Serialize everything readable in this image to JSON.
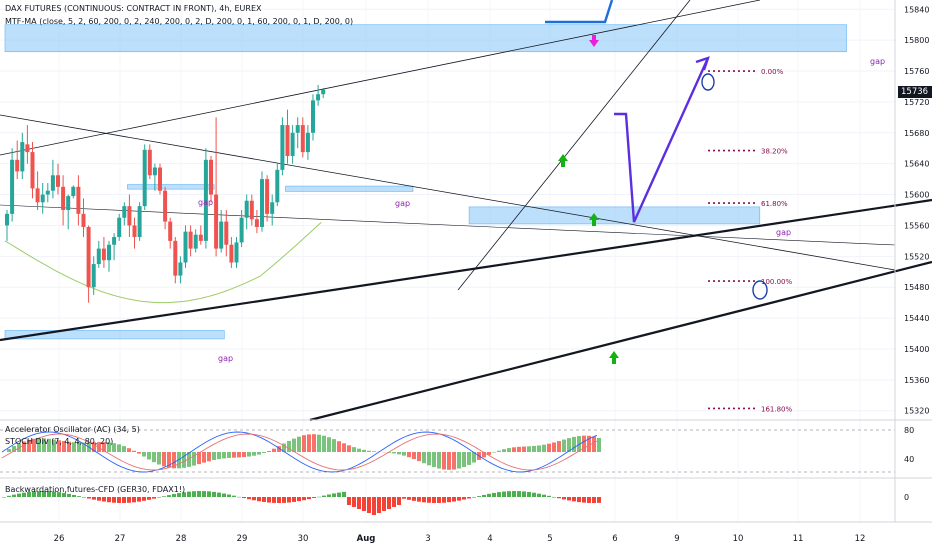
{
  "header": {
    "symbol_line": "DAX FUTURES (CONTINUOUS: CONTRACT IN FRONT), 4h, EUREX",
    "mtf_ma_line": "MTF-MA (close, 5, 2, 60, 200, 0, 2, 240, 200, 0, 2, D, 200, 0, 1, 60, 200, 0, 1, D, 200, 0)",
    "ac_line": "Accelerator Oscillator (AC) (34, 5)",
    "stoch_line": "STOCH Div (7, 4, 4, 80, 20)",
    "backwardation_line": "Backwardation,futures-CFD (GER30, FDAX1!)"
  },
  "last_price": "15736",
  "colors": {
    "bull": "#26a69a",
    "bear": "#ef5350",
    "zone_fill": "#90caf9",
    "projection": "#5b2fe0",
    "fib": "#880e4f",
    "ma_line": "#9ccc65",
    "arrow_up": "#12b312",
    "arrow_down": "#e91ee0",
    "stoch_blue": "#2962ff",
    "stoch_red": "#e57373"
  },
  "annotations": {
    "gap_labels": [
      "gap",
      "gap",
      "gap",
      "gap",
      "gap"
    ],
    "fib_labels": [
      "0.00%",
      "38.20%",
      "61.80%",
      "100.00%",
      "161.80%"
    ]
  },
  "chart_data": {
    "type": "candlestick",
    "x_tick_labels": [
      "26",
      "27",
      "28",
      "29",
      "30",
      "Aug",
      "3",
      "4",
      "5",
      "6",
      "9",
      "10",
      "11",
      "12"
    ],
    "price_axis": {
      "ticks": [
        15840,
        15800,
        15760,
        15720,
        15680,
        15640,
        15600,
        15560,
        15520,
        15480,
        15440,
        15400,
        15360,
        15320
      ],
      "range": [
        15308,
        15852
      ]
    },
    "ac_axis_ticks": [
      80,
      40
    ],
    "backwardation_axis_ticks": [
      0
    ],
    "candles_ohlc": [
      [
        15560,
        15580,
        15540,
        15575
      ],
      [
        15575,
        15660,
        15565,
        15645
      ],
      [
        15645,
        15670,
        15620,
        15630
      ],
      [
        15630,
        15680,
        15620,
        15668
      ],
      [
        15665,
        15690,
        15640,
        15655
      ],
      [
        15655,
        15668,
        15595,
        15608
      ],
      [
        15608,
        15630,
        15580,
        15590
      ],
      [
        15590,
        15615,
        15575,
        15600
      ],
      [
        15600,
        15615,
        15590,
        15605
      ],
      [
        15605,
        15645,
        15595,
        15625
      ],
      [
        15625,
        15640,
        15600,
        15610
      ],
      [
        15610,
        15625,
        15560,
        15580
      ],
      [
        15580,
        15600,
        15555,
        15598
      ],
      [
        15598,
        15612,
        15595,
        15610
      ],
      [
        15610,
        15625,
        15560,
        15575
      ],
      [
        15575,
        15595,
        15545,
        15558
      ],
      [
        15558,
        15560,
        15460,
        15480
      ],
      [
        15480,
        15520,
        15470,
        15510
      ],
      [
        15510,
        15540,
        15505,
        15530
      ],
      [
        15530,
        15545,
        15505,
        15515
      ],
      [
        15515,
        15540,
        15500,
        15535
      ],
      [
        15535,
        15550,
        15515,
        15545
      ],
      [
        15545,
        15575,
        15540,
        15570
      ],
      [
        15570,
        15590,
        15560,
        15585
      ],
      [
        15585,
        15600,
        15545,
        15560
      ],
      [
        15560,
        15570,
        15530,
        15545
      ],
      [
        15545,
        15590,
        15540,
        15585
      ],
      [
        15585,
        15665,
        15580,
        15658
      ],
      [
        15658,
        15665,
        15620,
        15625
      ],
      [
        15625,
        15640,
        15605,
        15635
      ],
      [
        15635,
        15640,
        15600,
        15605
      ],
      [
        15605,
        15610,
        15555,
        15565
      ],
      [
        15565,
        15570,
        15530,
        15540
      ],
      [
        15540,
        15545,
        15485,
        15495
      ],
      [
        15495,
        15520,
        15485,
        15512
      ],
      [
        15512,
        15560,
        15505,
        15552
      ],
      [
        15552,
        15560,
        15520,
        15530
      ],
      [
        15530,
        15555,
        15525,
        15548
      ],
      [
        15548,
        15560,
        15535,
        15540
      ],
      [
        15540,
        15660,
        15530,
        15645
      ],
      [
        15645,
        15650,
        15590,
        15600
      ],
      [
        15600,
        15700,
        15520,
        15530
      ],
      [
        15530,
        15580,
        15525,
        15565
      ],
      [
        15565,
        15580,
        15520,
        15535
      ],
      [
        15535,
        15545,
        15505,
        15512
      ],
      [
        15512,
        15545,
        15505,
        15538
      ],
      [
        15538,
        15580,
        15532,
        15570
      ],
      [
        15570,
        15600,
        15555,
        15592
      ],
      [
        15592,
        15600,
        15560,
        15568
      ],
      [
        15568,
        15580,
        15550,
        15558
      ],
      [
        15558,
        15630,
        15552,
        15620
      ],
      [
        15620,
        15625,
        15565,
        15575
      ],
      [
        15575,
        15600,
        15560,
        15590
      ],
      [
        15590,
        15640,
        15585,
        15632
      ],
      [
        15632,
        15700,
        15625,
        15690
      ],
      [
        15690,
        15710,
        15640,
        15650
      ],
      [
        15650,
        15690,
        15640,
        15680
      ],
      [
        15680,
        15700,
        15660,
        15690
      ],
      [
        15690,
        15700,
        15648,
        15655
      ],
      [
        15655,
        15690,
        15645,
        15680
      ],
      [
        15680,
        15730,
        15670,
        15722
      ],
      [
        15722,
        15742,
        15715,
        15730
      ],
      [
        15730,
        15738,
        15725,
        15736
      ]
    ],
    "zones": [
      {
        "from_bar": 0,
        "to_bar": 165,
        "low": 15785,
        "high": 15820
      },
      {
        "from_bar": 24,
        "to_bar": 41,
        "low": 15607,
        "high": 15613
      },
      {
        "from_bar": 55,
        "to_bar": 80,
        "low": 15604,
        "high": 15611
      },
      {
        "from_bar": 91,
        "to_bar": 148,
        "low": 15562,
        "high": 15584
      },
      {
        "from_bar": 0,
        "to_bar": 43,
        "low": 15413,
        "high": 15424
      }
    ],
    "fib_levels": [
      {
        "label": "0.00%",
        "price": 15760
      },
      {
        "label": "38.20%",
        "price": 15657
      },
      {
        "label": "61.80%",
        "price": 15589
      },
      {
        "label": "100.00%",
        "price": 15488
      },
      {
        "label": "161.80%",
        "price": 15323
      }
    ]
  }
}
